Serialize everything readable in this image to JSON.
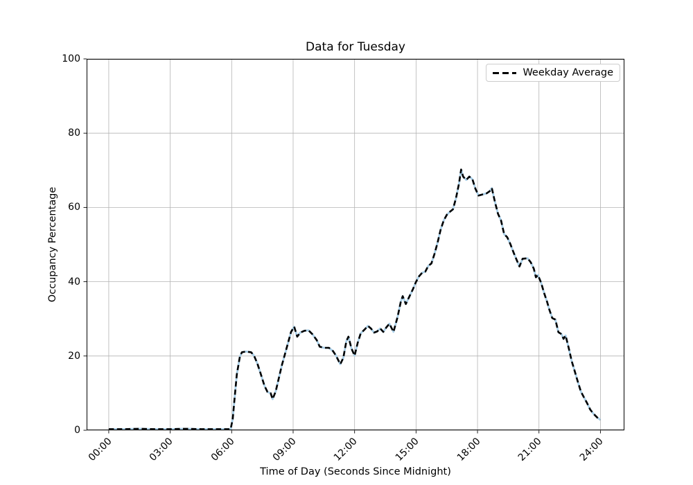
{
  "chart_data": {
    "type": "line",
    "title": "Data for Tuesday",
    "xlabel": "Time of Day (Seconds Since Midnight)",
    "ylabel": "Occupancy Percentage",
    "xlim_hours": [
      -1.08,
      25.17
    ],
    "ylim": [
      0,
      100
    ],
    "grid": true,
    "colors": {
      "dash_line": "#000000",
      "under_line": "#a9cfe8",
      "grid": "#b4b4b4",
      "spine": "#000000",
      "legend_border": "#cccccc"
    },
    "x_ticks": [
      {
        "hour": 0,
        "label": "00:00"
      },
      {
        "hour": 3,
        "label": "03:00"
      },
      {
        "hour": 6,
        "label": "06:00"
      },
      {
        "hour": 9,
        "label": "09:00"
      },
      {
        "hour": 12,
        "label": "12:00"
      },
      {
        "hour": 15,
        "label": "15:00"
      },
      {
        "hour": 18,
        "label": "18:00"
      },
      {
        "hour": 21,
        "label": "21:00"
      },
      {
        "hour": 24,
        "label": "24:00"
      }
    ],
    "y_ticks": [
      0,
      20,
      40,
      60,
      80,
      100
    ],
    "legend": {
      "position": "upper right",
      "entries": [
        {
          "label": "Weekday Average",
          "line_style": "dashed",
          "line_color": "#000000"
        }
      ]
    },
    "series": [
      {
        "name": "Weekday Average",
        "points_hours_value": [
          [
            0,
            0.3
          ],
          [
            0.75,
            0.3
          ],
          [
            1.5,
            0.4
          ],
          [
            2.25,
            0.3
          ],
          [
            3,
            0.3
          ],
          [
            3.75,
            0.4
          ],
          [
            4.5,
            0.3
          ],
          [
            5.25,
            0.3
          ],
          [
            5.95,
            0.3
          ],
          [
            6.05,
            3
          ],
          [
            6.15,
            9
          ],
          [
            6.25,
            15
          ],
          [
            6.4,
            19.8
          ],
          [
            6.5,
            21
          ],
          [
            6.7,
            21.2
          ],
          [
            6.95,
            21
          ],
          [
            7.1,
            20
          ],
          [
            7.25,
            18
          ],
          [
            7.4,
            15.5
          ],
          [
            7.6,
            12
          ],
          [
            7.75,
            10.3
          ],
          [
            7.9,
            10
          ],
          [
            8,
            8.4
          ],
          [
            8.15,
            10.5
          ],
          [
            8.3,
            14
          ],
          [
            8.45,
            17.5
          ],
          [
            8.6,
            20.5
          ],
          [
            8.75,
            23.5
          ],
          [
            8.9,
            26.5
          ],
          [
            9.05,
            27.9
          ],
          [
            9.2,
            25.2
          ],
          [
            9.35,
            26.3
          ],
          [
            9.55,
            26.8
          ],
          [
            9.75,
            26.9
          ],
          [
            9.95,
            25.8
          ],
          [
            10.15,
            24.3
          ],
          [
            10.3,
            22.5
          ],
          [
            10.5,
            22.2
          ],
          [
            10.75,
            22.2
          ],
          [
            10.95,
            21.3
          ],
          [
            11.1,
            20
          ],
          [
            11.3,
            17.8
          ],
          [
            11.45,
            19.5
          ],
          [
            11.6,
            24
          ],
          [
            11.7,
            25.2
          ],
          [
            11.85,
            22
          ],
          [
            12,
            20.1
          ],
          [
            12.15,
            23.5
          ],
          [
            12.3,
            26.1
          ],
          [
            12.5,
            27.2
          ],
          [
            12.65,
            28.1
          ],
          [
            12.8,
            27.4
          ],
          [
            12.95,
            26.3
          ],
          [
            13.1,
            26.6
          ],
          [
            13.25,
            27.4
          ],
          [
            13.4,
            26.5
          ],
          [
            13.55,
            27.7
          ],
          [
            13.7,
            28.7
          ],
          [
            13.9,
            26.5
          ],
          [
            14.1,
            30.5
          ],
          [
            14.25,
            34.5
          ],
          [
            14.35,
            36.1
          ],
          [
            14.5,
            34
          ],
          [
            14.7,
            36.3
          ],
          [
            14.85,
            38
          ],
          [
            15,
            40
          ],
          [
            15.15,
            41.5
          ],
          [
            15.3,
            42.4
          ],
          [
            15.45,
            42.7
          ],
          [
            15.6,
            44.3
          ],
          [
            15.75,
            44.9
          ],
          [
            15.9,
            47.5
          ],
          [
            16.05,
            50.5
          ],
          [
            16.2,
            54
          ],
          [
            16.35,
            56.5
          ],
          [
            16.5,
            58
          ],
          [
            16.65,
            58.8
          ],
          [
            16.8,
            59.5
          ],
          [
            16.95,
            62.5
          ],
          [
            17.1,
            66.5
          ],
          [
            17.2,
            70.2
          ],
          [
            17.3,
            68.3
          ],
          [
            17.45,
            67.4
          ],
          [
            17.6,
            68.3
          ],
          [
            17.75,
            67.6
          ],
          [
            17.9,
            65
          ],
          [
            18.05,
            63.2
          ],
          [
            18.25,
            63.5
          ],
          [
            18.45,
            63.8
          ],
          [
            18.6,
            64.4
          ],
          [
            18.7,
            65.2
          ],
          [
            18.85,
            61.5
          ],
          [
            19,
            58.3
          ],
          [
            19.15,
            56.5
          ],
          [
            19.3,
            52.8
          ],
          [
            19.45,
            52
          ],
          [
            19.6,
            50.2
          ],
          [
            19.75,
            48
          ],
          [
            19.9,
            46
          ],
          [
            20.05,
            44.1
          ],
          [
            20.2,
            46.2
          ],
          [
            20.45,
            46.3
          ],
          [
            20.6,
            45.2
          ],
          [
            20.75,
            43.5
          ],
          [
            20.85,
            41.2
          ],
          [
            20.95,
            41.8
          ],
          [
            21.1,
            39.8
          ],
          [
            21.25,
            37
          ],
          [
            21.4,
            34.5
          ],
          [
            21.5,
            32.6
          ],
          [
            21.65,
            30.2
          ],
          [
            21.8,
            29.8
          ],
          [
            21.95,
            26.4
          ],
          [
            22.1,
            25.9
          ],
          [
            22.2,
            24.6
          ],
          [
            22.3,
            25.5
          ],
          [
            22.45,
            22.2
          ],
          [
            22.6,
            18.6
          ],
          [
            22.75,
            15.8
          ],
          [
            22.9,
            13
          ],
          [
            23.05,
            10.4
          ],
          [
            23.2,
            8.8
          ],
          [
            23.35,
            7.3
          ],
          [
            23.5,
            5.6
          ],
          [
            23.65,
            4.5
          ],
          [
            23.85,
            3.4
          ],
          [
            24,
            2.8
          ]
        ]
      }
    ]
  }
}
